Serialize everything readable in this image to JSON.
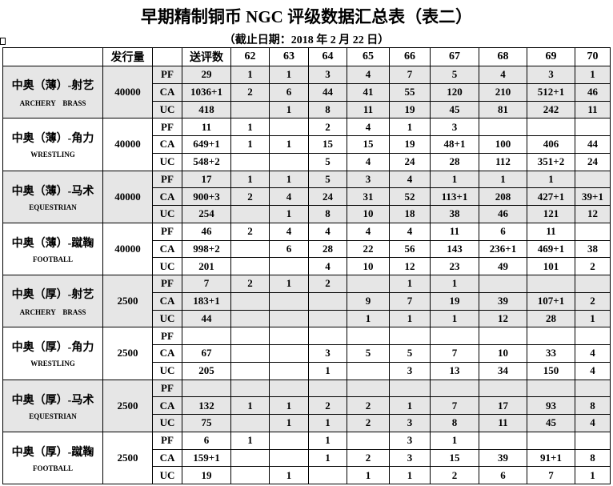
{
  "title": "早期精制铜币 NGC 评级数据汇总表（表二）",
  "subtitle": "（截止日期：2018 年 2 月 22 日）",
  "header": {
    "issue": "发行量",
    "grade_type": "",
    "submitted": "送评数",
    "grades": [
      "62",
      "63",
      "64",
      "65",
      "66",
      "67",
      "68",
      "69",
      "70"
    ]
  },
  "groups": [
    {
      "name_zh": "中奥（薄）-射艺",
      "name_en": "ARCHERY　BRASS",
      "issue": "40000",
      "shaded": true,
      "rows": [
        {
          "type": "PF",
          "total": "29",
          "grades": [
            "1",
            "1",
            "3",
            "4",
            "7",
            "5",
            "4",
            "3",
            "1"
          ]
        },
        {
          "type": "CA",
          "total": "1036+1",
          "grades": [
            "2",
            "6",
            "44",
            "41",
            "55",
            "120",
            "210",
            "512+1",
            "46"
          ]
        },
        {
          "type": "UC",
          "total": "418",
          "grades": [
            "",
            "1",
            "8",
            "11",
            "19",
            "45",
            "81",
            "242",
            "11"
          ]
        }
      ]
    },
    {
      "name_zh": "中奥（薄）-角力",
      "name_en": "WRESTLING",
      "issue": "40000",
      "shaded": false,
      "rows": [
        {
          "type": "PF",
          "total": "11",
          "grades": [
            "1",
            "",
            "2",
            "4",
            "1",
            "3",
            "",
            "",
            ""
          ]
        },
        {
          "type": "CA",
          "total": "649+1",
          "grades": [
            "1",
            "1",
            "15",
            "15",
            "19",
            "48+1",
            "100",
            "406",
            "44"
          ]
        },
        {
          "type": "UC",
          "total": "548+2",
          "grades": [
            "",
            "",
            "5",
            "4",
            "24",
            "28",
            "112",
            "351+2",
            "24"
          ]
        }
      ]
    },
    {
      "name_zh": "中奥（薄）-马术",
      "name_en": "EQUESTRIAN",
      "issue": "40000",
      "shaded": true,
      "rows": [
        {
          "type": "PF",
          "total": "17",
          "grades": [
            "1",
            "1",
            "5",
            "3",
            "4",
            "1",
            "1",
            "1",
            ""
          ]
        },
        {
          "type": "CA",
          "total": "900+3",
          "grades": [
            "2",
            "4",
            "24",
            "31",
            "52",
            "113+1",
            "208",
            "427+1",
            "39+1"
          ]
        },
        {
          "type": "UC",
          "total": "254",
          "grades": [
            "",
            "1",
            "8",
            "10",
            "18",
            "38",
            "46",
            "121",
            "12"
          ]
        }
      ]
    },
    {
      "name_zh": "中奥（薄）-蹴鞠",
      "name_en": "FOOTBALL",
      "issue": "40000",
      "shaded": false,
      "rows": [
        {
          "type": "PF",
          "total": "46",
          "grades": [
            "2",
            "4",
            "4",
            "4",
            "4",
            "11",
            "6",
            "11",
            ""
          ]
        },
        {
          "type": "CA",
          "total": "998+2",
          "grades": [
            "",
            "6",
            "28",
            "22",
            "56",
            "143",
            "236+1",
            "469+1",
            "38"
          ]
        },
        {
          "type": "UC",
          "total": "201",
          "grades": [
            "",
            "",
            "4",
            "10",
            "12",
            "23",
            "49",
            "101",
            "2"
          ]
        }
      ]
    },
    {
      "name_zh": "中奥（厚）-射艺",
      "name_en": "ARCHERY　BRASS",
      "issue": "2500",
      "shaded": true,
      "rows": [
        {
          "type": "PF",
          "total": "7",
          "grades": [
            "2",
            "1",
            "2",
            "",
            "1",
            "1",
            "",
            "",
            ""
          ]
        },
        {
          "type": "CA",
          "total": "183+1",
          "grades": [
            "",
            "",
            "",
            "9",
            "7",
            "19",
            "39",
            "107+1",
            "2"
          ]
        },
        {
          "type": "UC",
          "total": "44",
          "grades": [
            "",
            "",
            "",
            "1",
            "1",
            "1",
            "12",
            "28",
            "1"
          ]
        }
      ]
    },
    {
      "name_zh": "中奥（厚）-角力",
      "name_en": "WRESTLING",
      "issue": "2500",
      "shaded": false,
      "rows": [
        {
          "type": "PF",
          "total": "",
          "grades": [
            "",
            "",
            "",
            "",
            "",
            "",
            "",
            "",
            ""
          ]
        },
        {
          "type": "CA",
          "total": "67",
          "grades": [
            "",
            "",
            "3",
            "5",
            "5",
            "7",
            "10",
            "33",
            "4"
          ]
        },
        {
          "type": "UC",
          "total": "205",
          "grades": [
            "",
            "",
            "1",
            "",
            "3",
            "13",
            "34",
            "150",
            "4"
          ]
        }
      ]
    },
    {
      "name_zh": "中奥（厚）-马术",
      "name_en": "EQUESTRIAN",
      "issue": "2500",
      "shaded": true,
      "rows": [
        {
          "type": "PF",
          "total": "",
          "grades": [
            "",
            "",
            "",
            "",
            "",
            "",
            "",
            "",
            ""
          ]
        },
        {
          "type": "CA",
          "total": "132",
          "grades": [
            "1",
            "1",
            "2",
            "2",
            "1",
            "7",
            "17",
            "93",
            "8"
          ]
        },
        {
          "type": "UC",
          "total": "75",
          "grades": [
            "",
            "1",
            "1",
            "2",
            "3",
            "8",
            "11",
            "45",
            "4"
          ]
        }
      ]
    },
    {
      "name_zh": "中奥（厚）-蹴鞠",
      "name_en": "FOOTBALL",
      "issue": "2500",
      "shaded": false,
      "rows": [
        {
          "type": "PF",
          "total": "6",
          "grades": [
            "1",
            "",
            "1",
            "",
            "3",
            "1",
            "",
            "",
            ""
          ]
        },
        {
          "type": "CA",
          "total": "159+1",
          "grades": [
            "",
            "",
            "1",
            "2",
            "3",
            "15",
            "39",
            "91+1",
            "8"
          ]
        },
        {
          "type": "UC",
          "total": "19",
          "grades": [
            "",
            "1",
            "",
            "1",
            "1",
            "2",
            "6",
            "7",
            "1"
          ]
        }
      ]
    }
  ],
  "colors": {
    "shade": "#e6e6e6",
    "border": "#000000"
  }
}
